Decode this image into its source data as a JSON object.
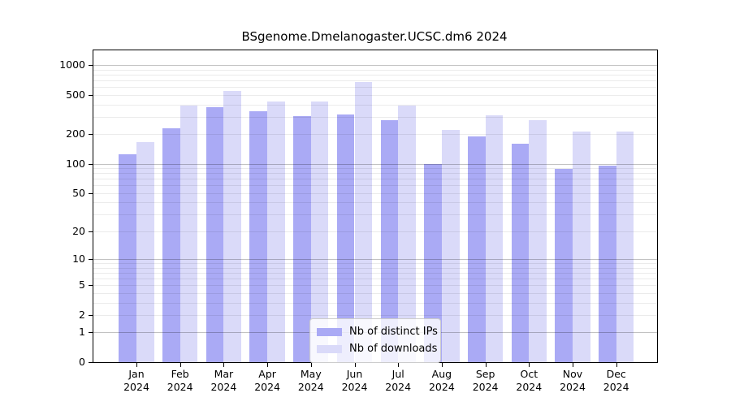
{
  "title": "BSgenome.Dmelanogaster.UCSC.dm6 2024",
  "chart_data": {
    "type": "bar",
    "y_scale": "log1p",
    "title": "BSgenome.Dmelanogaster.UCSC.dm6 2024",
    "categories": [
      "Jan",
      "Feb",
      "Mar",
      "Apr",
      "May",
      "Jun",
      "Jul",
      "Aug",
      "Sep",
      "Oct",
      "Nov",
      "Dec"
    ],
    "category_year": "2024",
    "series": [
      {
        "name": "Nb of distinct IPs",
        "color": "#aaaaf5",
        "values": [
          125,
          230,
          375,
          340,
          305,
          315,
          275,
          100,
          190,
          160,
          88,
          95
        ]
      },
      {
        "name": "Nb of downloads",
        "color": "#dadaf9",
        "values": [
          165,
          390,
          550,
          430,
          430,
          670,
          390,
          220,
          310,
          275,
          212,
          213
        ]
      }
    ],
    "yticks": [
      0,
      1,
      2,
      5,
      10,
      20,
      50,
      100,
      200,
      500,
      1000
    ],
    "ylim": [
      0,
      1400
    ],
    "grid": {
      "major_values": [
        1,
        10,
        100,
        1000
      ],
      "major_color": "rgba(0,0,0,0.24)",
      "minor_color": "rgba(0,0,0,0.08)"
    },
    "legend": {
      "position": "lower center"
    },
    "colors": {
      "spine": "#000000",
      "background": "#ffffff"
    }
  }
}
